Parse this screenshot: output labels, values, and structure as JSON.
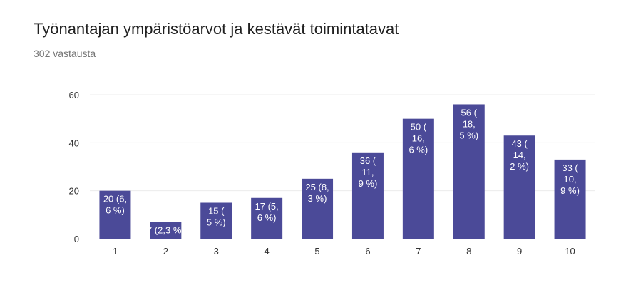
{
  "title": "Työnantajan ympäristöarvot ja kestävät toimintatavat",
  "subtitle": "302 vastausta",
  "colors": {
    "bar": "#4b4a98",
    "grid": "#ececec",
    "axis": "#333333",
    "label_inside": "#ffffff",
    "label_outside": "#333333"
  },
  "chart_data": {
    "type": "bar",
    "title": "Työnantajan ympäristöarvot ja kestävät toimintatavat",
    "subtitle": "302 vastausta",
    "categories": [
      "1",
      "2",
      "3",
      "4",
      "5",
      "6",
      "7",
      "8",
      "9",
      "10"
    ],
    "values": [
      20,
      7,
      15,
      17,
      25,
      36,
      50,
      56,
      43,
      33
    ],
    "data_labels": [
      [
        "20 (6,",
        "6 %)"
      ],
      [
        "7 (2,3 %)"
      ],
      [
        "15 (",
        "5 %)"
      ],
      [
        "17 (5,",
        "6 %)"
      ],
      [
        "25 (8,",
        "3 %)"
      ],
      [
        "36 (",
        "11,",
        "9 %)"
      ],
      [
        "50 (",
        "16,",
        "6 %)"
      ],
      [
        "56 (",
        "18,",
        "5 %)"
      ],
      [
        "43 (",
        "14,",
        "2 %)"
      ],
      [
        "33 (",
        "10,",
        "9 %)"
      ]
    ],
    "yticks": [
      0,
      20,
      40,
      60
    ],
    "ylim": [
      0,
      60
    ],
    "xlabel": "",
    "ylabel": "",
    "grid": true,
    "legend": "none"
  }
}
